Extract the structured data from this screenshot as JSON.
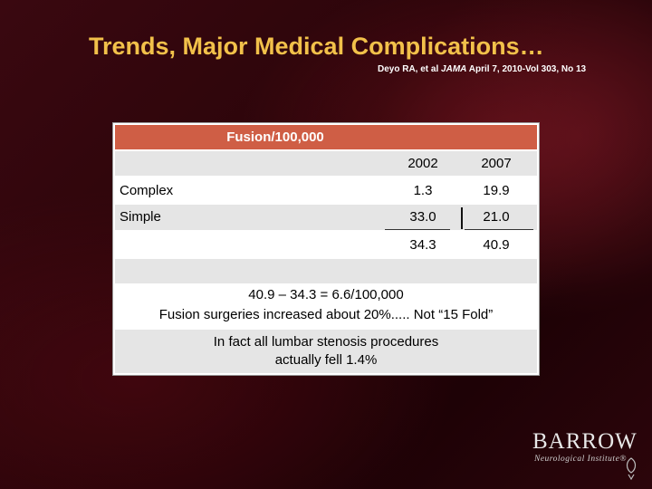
{
  "slide": {
    "title": "Trends, Major Medical Complications…",
    "citation": {
      "authors": "Deyo RA, et al",
      "journal": "JAMA",
      "details": "April 7, 2010-Vol 303, No 13"
    }
  },
  "table": {
    "header": "Fusion/100,000",
    "columns": [
      "2002",
      "2007"
    ],
    "rows": [
      {
        "label": "Complex",
        "values": [
          "1.3",
          "19.9"
        ]
      },
      {
        "label": "Simple",
        "values": [
          "33.0",
          "21.0"
        ]
      },
      {
        "label": "",
        "values": [
          "34.3",
          "40.9"
        ]
      }
    ]
  },
  "notes": {
    "line1": "40.9 – 34.3 = 6.6/100,000",
    "line2": "Fusion surgeries increased about 20%..... Not “15 Fold”",
    "line3": "In fact all lumbar stenosis procedures",
    "line4": "actually fell 1.4%"
  },
  "logo": {
    "name": "BARROW",
    "subtitle": "Neurological Institute",
    "registered": "®"
  },
  "colors": {
    "title": "#f2c14a",
    "header_bar": "#cf5e45",
    "background": "#2a0409"
  }
}
